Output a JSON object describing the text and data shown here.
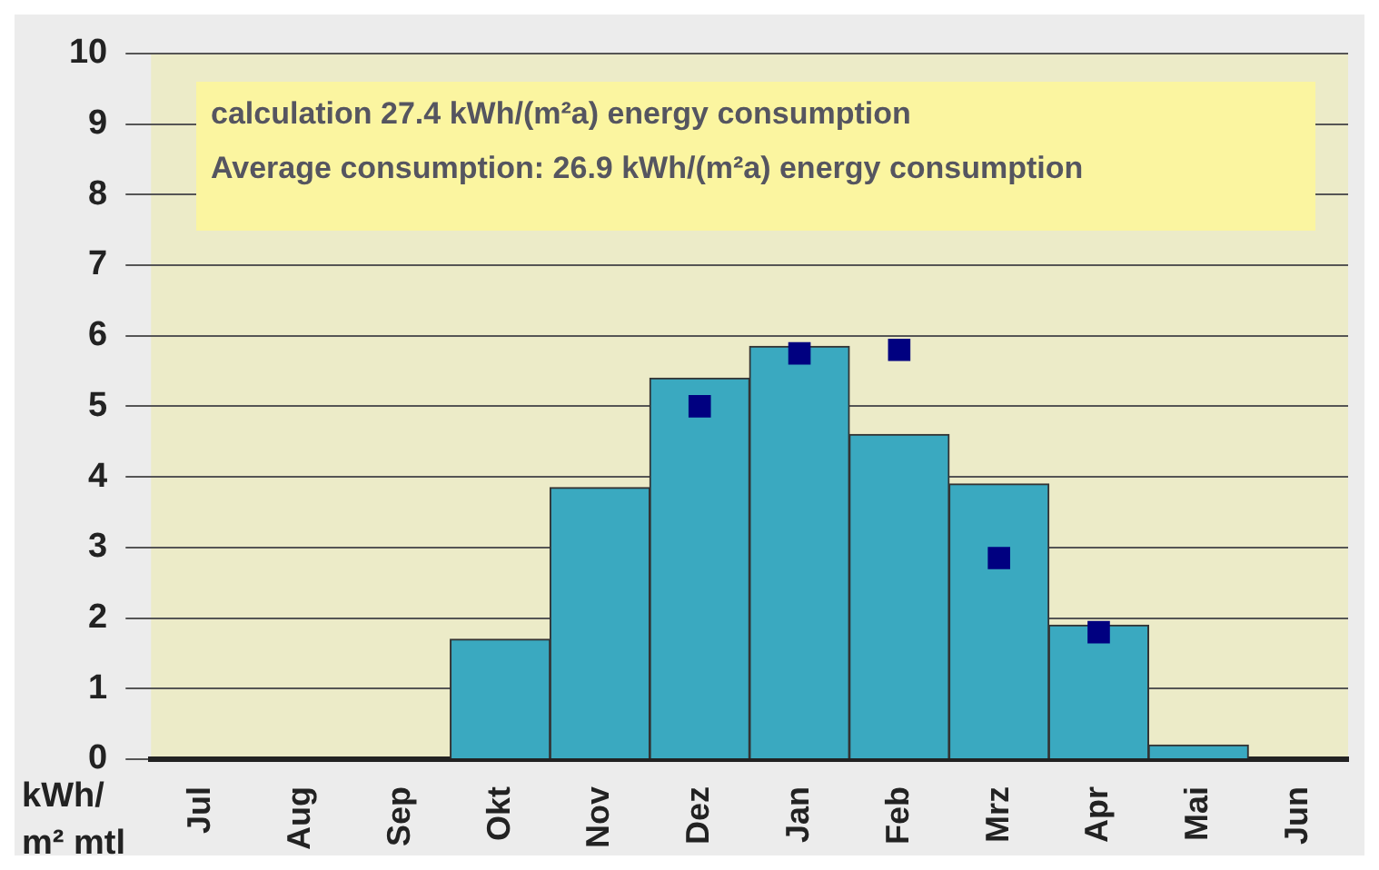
{
  "chart_data": {
    "type": "bar",
    "ylabel": "kWh/ m² mtl",
    "categories": [
      "Jul",
      "Aug",
      "Sep",
      "Okt",
      "Nov",
      "Dez",
      "Jan",
      "Feb",
      "Mrz",
      "Apr",
      "Mai",
      "Jun"
    ],
    "series": [
      {
        "color": "#3aa9c0",
        "values": [
          0,
          0,
          0,
          1.7,
          3.85,
          5.4,
          5.85,
          4.6,
          3.9,
          1.9,
          0.2,
          null
        ]
      },
      {
        "type": "scatter",
        "color": "#000080",
        "marker": "square",
        "x": [
          "Dez",
          "Jan",
          "Feb",
          "Mrz",
          "Apr"
        ],
        "values": [
          5.0,
          5.75,
          5.8,
          2.85,
          1.8
        ]
      }
    ],
    "ylim": [
      0,
      10
    ],
    "yticks": [
      0,
      1,
      2,
      3,
      4,
      5,
      6,
      7,
      8,
      9,
      10
    ],
    "grid": "y",
    "legend": false,
    "annotations": [
      "calculation 27.4 kWh/(m²a) energy consumption",
      "Average consumption: 26.9 kWh/(m²a) energy consumption"
    ]
  }
}
